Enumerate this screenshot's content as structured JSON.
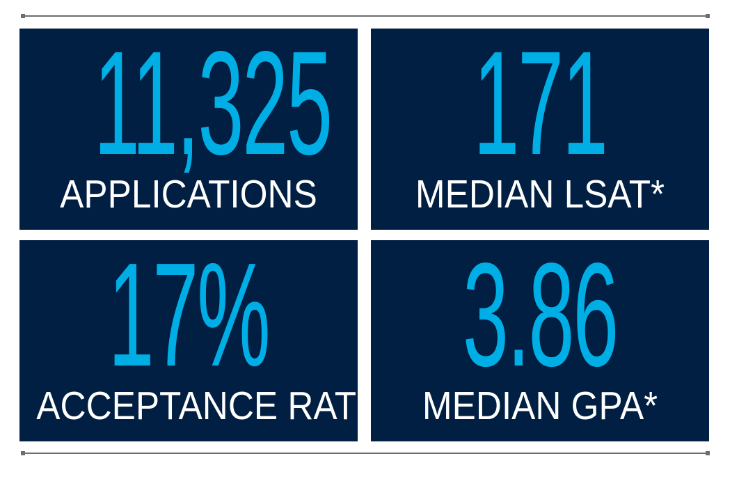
{
  "colors": {
    "panel": "#001f42",
    "accent": "#00aee6",
    "label": "#ffffff",
    "rule": "#6d6e71"
  },
  "stats": [
    {
      "value": "11,325",
      "label": "APPLICATIONS"
    },
    {
      "value": "171",
      "label": "MEDIAN LSAT*"
    },
    {
      "value": "17%",
      "label": "ACCEPTANCE RATE"
    },
    {
      "value": "3.86",
      "label": "MEDIAN GPA*"
    }
  ]
}
